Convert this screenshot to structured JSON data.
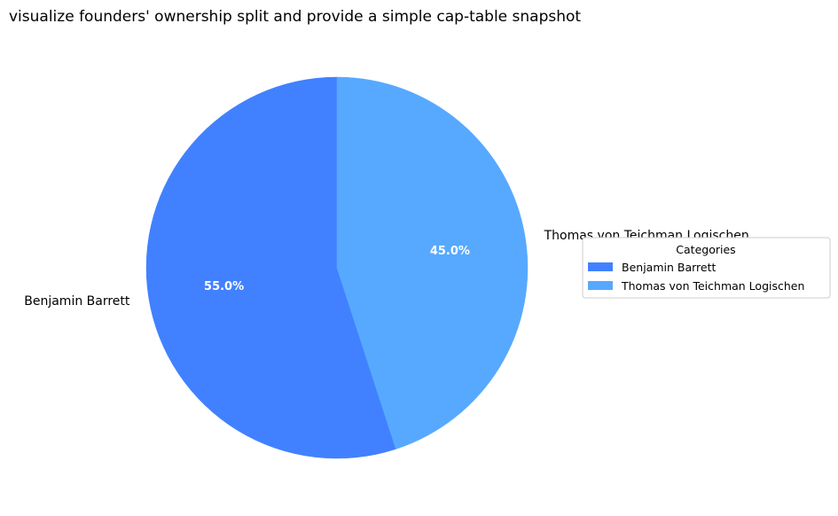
{
  "chart_data": {
    "type": "pie",
    "title": "visualize founders' ownership split and provide a simple cap-table snapshot",
    "categories": [
      "Benjamin Barrett",
      "Thomas von Teichman Logischen"
    ],
    "values": [
      55.0,
      45.0
    ],
    "percent_labels": [
      "55.0%",
      "45.0%"
    ],
    "colors": [
      "#4181ff",
      "#57a9ff"
    ],
    "start_angle": "top",
    "direction": "counterclockwise",
    "legend": {
      "title": "Categories",
      "entries": [
        "Benjamin Barrett",
        "Thomas von Teichman Logischen"
      ],
      "placement": "right"
    }
  }
}
